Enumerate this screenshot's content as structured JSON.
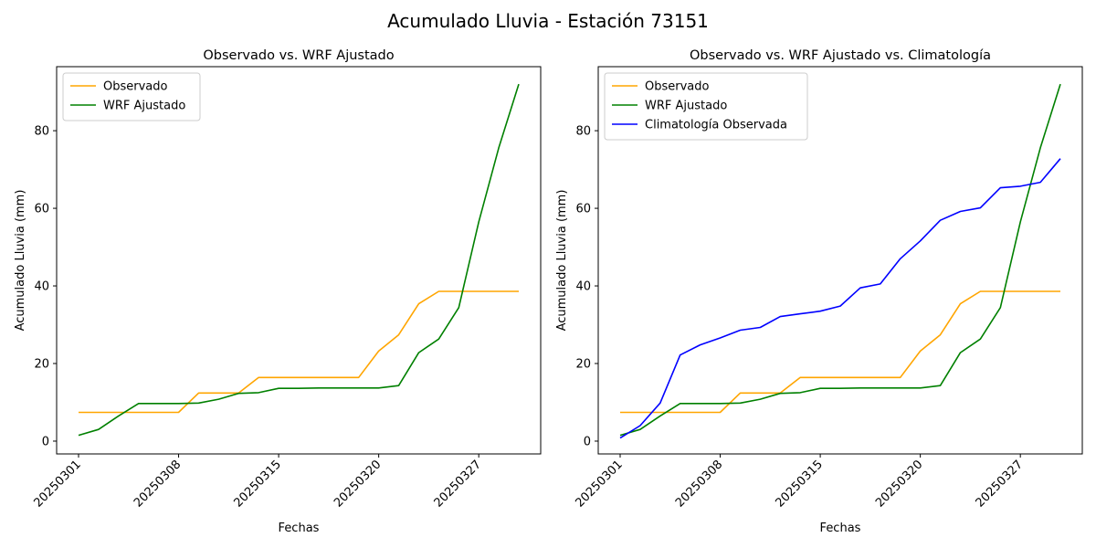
{
  "suptitle": "Acumulado Lluvia - Estación 73151",
  "colors": {
    "observado": "#ffa500",
    "wrf": "#008000",
    "clima": "#0000ff"
  },
  "chart_data": [
    {
      "type": "line",
      "title": "Observado vs. WRF Ajustado",
      "xlabel": "Fechas",
      "ylabel": "Acumulado Lluvia (mm)",
      "x_ticks": [
        "20250301",
        "20250308",
        "20250315",
        "20250320",
        "20250327"
      ],
      "y_ticks": [
        0,
        20,
        40,
        60,
        80
      ],
      "ylim": [
        -3.3,
        96.5
      ],
      "legend_position": "upper-left",
      "series": [
        {
          "name": "Observado",
          "color": "#ffa500",
          "values": [
            7.4,
            7.4,
            7.4,
            7.4,
            7.4,
            7.4,
            12.4,
            12.4,
            12.4,
            16.4,
            16.4,
            16.4,
            16.4,
            16.4,
            16.4,
            23.2,
            27.4,
            35.4,
            38.6,
            38.6,
            38.6,
            38.6,
            38.6
          ]
        },
        {
          "name": "WRF Ajustado",
          "color": "#008000",
          "values": [
            1.5,
            3.0,
            6.5,
            9.7,
            9.7,
            9.7,
            9.8,
            10.8,
            12.3,
            12.5,
            13.6,
            13.6,
            13.7,
            13.7,
            13.7,
            13.7,
            14.3,
            22.8,
            26.3,
            34.4,
            56.5,
            75.6,
            92.0
          ]
        }
      ]
    },
    {
      "type": "line",
      "title": "Observado vs. WRF Ajustado vs. Climatología",
      "xlabel": "Fechas",
      "ylabel": "Acumulado Lluvia (mm)",
      "x_ticks": [
        "20250301",
        "20250308",
        "20250315",
        "20250320",
        "20250327"
      ],
      "y_ticks": [
        0,
        20,
        40,
        60,
        80
      ],
      "ylim": [
        -3.3,
        96.5
      ],
      "legend_position": "upper-left",
      "series": [
        {
          "name": "Observado",
          "color": "#ffa500",
          "values": [
            7.4,
            7.4,
            7.4,
            7.4,
            7.4,
            7.4,
            12.4,
            12.4,
            12.4,
            16.4,
            16.4,
            16.4,
            16.4,
            16.4,
            16.4,
            23.2,
            27.4,
            35.4,
            38.6,
            38.6,
            38.6,
            38.6,
            38.6
          ]
        },
        {
          "name": "WRF Ajustado",
          "color": "#008000",
          "values": [
            1.5,
            3.0,
            6.5,
            9.7,
            9.7,
            9.7,
            9.8,
            10.8,
            12.3,
            12.5,
            13.6,
            13.6,
            13.7,
            13.7,
            13.7,
            13.7,
            14.3,
            22.8,
            26.3,
            34.4,
            56.5,
            75.6,
            92.0
          ]
        },
        {
          "name": "Climatología Observada",
          "color": "#0000ff",
          "values": [
            0.8,
            4.0,
            9.8,
            22.2,
            24.8,
            26.6,
            28.6,
            29.3,
            32.1,
            32.8,
            33.5,
            34.8,
            39.5,
            40.5,
            47.0,
            51.6,
            56.9,
            59.2,
            60.1,
            65.3,
            65.7,
            66.7,
            72.8
          ]
        }
      ]
    }
  ]
}
